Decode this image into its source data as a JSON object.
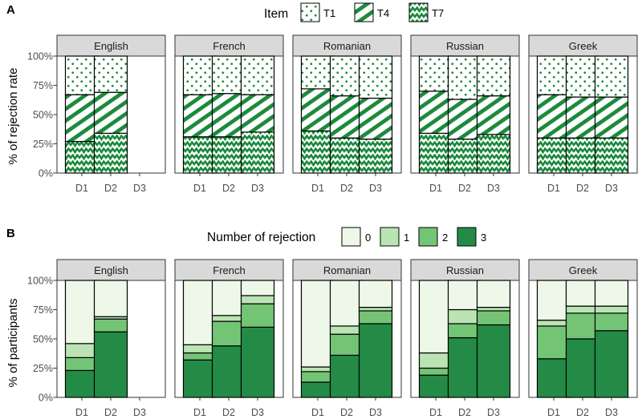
{
  "colors": {
    "pattern_bg": "#ffffff",
    "pattern_fg": "#1b8a3c",
    "fill_0": "#edf8e9",
    "fill_1": "#bae4b3",
    "fill_2": "#74c476",
    "fill_3": "#238b45",
    "strip_bg": "#d9d9d9",
    "outline": "#000000"
  },
  "chart_data": [
    {
      "tag": "A",
      "type": "bar",
      "stacked": true,
      "title": "",
      "ylabel": "% of rejection rate",
      "xlabel": "",
      "ylim": [
        0,
        100
      ],
      "yticks": [
        "0%",
        "25%",
        "50%",
        "75%",
        "100%"
      ],
      "legend_title": "Item",
      "legend_position": "top",
      "categories": [
        "D1",
        "D2",
        "D3"
      ],
      "stack_order": [
        "T7",
        "T4",
        "T1"
      ],
      "series": [
        {
          "name": "T1",
          "pattern": "dots"
        },
        {
          "name": "T4",
          "pattern": "stripes"
        },
        {
          "name": "T7",
          "pattern": "zigzag"
        }
      ],
      "facets": [
        {
          "name": "English",
          "values": {
            "T7": [
              27,
              34,
              null
            ],
            "T4": [
              40,
              35,
              null
            ],
            "T1": [
              33,
              31,
              null
            ]
          }
        },
        {
          "name": "French",
          "values": {
            "T7": [
              31,
              31,
              35
            ],
            "T4": [
              36,
              37,
              32
            ],
            "T1": [
              33,
              32,
              33
            ]
          }
        },
        {
          "name": "Romanian",
          "values": {
            "T7": [
              36,
              30,
              29
            ],
            "T4": [
              36,
              36,
              35
            ],
            "T1": [
              28,
              34,
              36
            ]
          }
        },
        {
          "name": "Russian",
          "values": {
            "T7": [
              34,
              29,
              33
            ],
            "T4": [
              36,
              34,
              33
            ],
            "T1": [
              30,
              37,
              34
            ]
          }
        },
        {
          "name": "Greek",
          "values": {
            "T7": [
              30,
              30,
              30
            ],
            "T4": [
              37,
              35,
              35
            ],
            "T1": [
              33,
              35,
              35
            ]
          }
        }
      ]
    },
    {
      "tag": "B",
      "type": "bar",
      "stacked": true,
      "title": "",
      "ylabel": "% of participants",
      "xlabel": "",
      "ylim": [
        0,
        100
      ],
      "yticks": [
        "0%",
        "25%",
        "50%",
        "75%",
        "100%"
      ],
      "legend_title": "Number of rejection",
      "legend_position": "top",
      "categories": [
        "D1",
        "D2",
        "D3"
      ],
      "stack_order": [
        "3",
        "2",
        "1",
        "0"
      ],
      "series": [
        {
          "name": "0",
          "color": "#edf8e9"
        },
        {
          "name": "1",
          "color": "#bae4b3"
        },
        {
          "name": "2",
          "color": "#74c476"
        },
        {
          "name": "3",
          "color": "#238b45"
        }
      ],
      "facets": [
        {
          "name": "English",
          "values": {
            "3": [
              23,
              56,
              null
            ],
            "2": [
              11,
              11,
              null
            ],
            "1": [
              12,
              2,
              null
            ],
            "0": [
              54,
              31,
              null
            ]
          }
        },
        {
          "name": "French",
          "values": {
            "3": [
              32,
              44,
              60
            ],
            "2": [
              6,
              21,
              20
            ],
            "1": [
              7,
              5,
              7
            ],
            "0": [
              55,
              30,
              13
            ]
          }
        },
        {
          "name": "Romanian",
          "values": {
            "3": [
              13,
              36,
              63
            ],
            "2": [
              9,
              18,
              11
            ],
            "1": [
              4,
              7,
              3
            ],
            "0": [
              74,
              39,
              23
            ]
          }
        },
        {
          "name": "Russian",
          "values": {
            "3": [
              19,
              51,
              62
            ],
            "2": [
              6,
              12,
              12
            ],
            "1": [
              13,
              12,
              3
            ],
            "0": [
              62,
              25,
              23
            ]
          }
        },
        {
          "name": "Greek",
          "values": {
            "3": [
              33,
              50,
              57
            ],
            "2": [
              28,
              22,
              15
            ],
            "1": [
              5,
              6,
              6
            ],
            "0": [
              34,
              22,
              22
            ]
          }
        }
      ]
    }
  ]
}
